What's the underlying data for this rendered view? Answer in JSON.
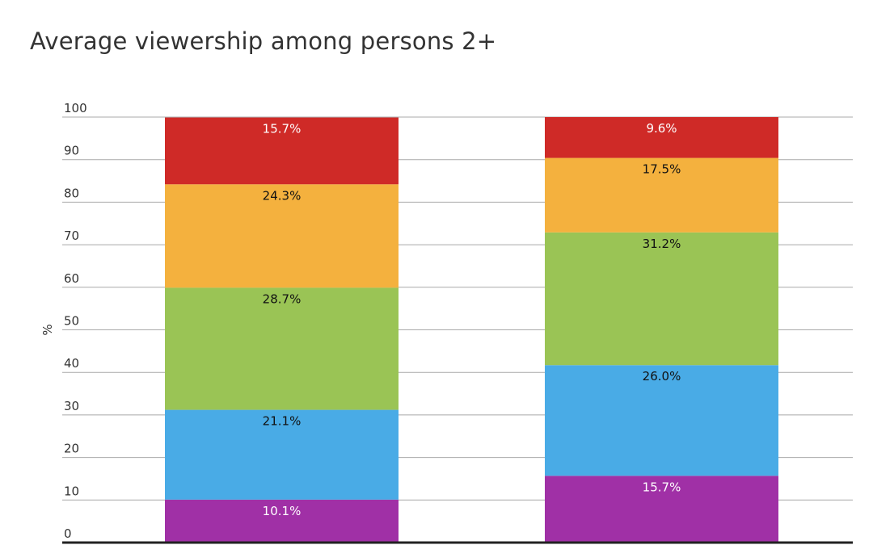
{
  "chart_data": {
    "type": "bar",
    "stacked": true,
    "title": "Average viewership among persons 2+",
    "xlabel": "",
    "ylabel": "%",
    "ylim": [
      0,
      100
    ],
    "yticks": [
      "0",
      "10",
      "20",
      "30",
      "40",
      "50",
      "60",
      "70",
      "80",
      "90",
      "100"
    ],
    "grid": true,
    "categories": [
      "",
      ""
    ],
    "series": [
      {
        "color": "#a030a6",
        "label_color": "#ffffff",
        "values": [
          10.1,
          15.7
        ],
        "labels": [
          "10.1%",
          "15.7%"
        ]
      },
      {
        "color": "#49abe6",
        "label_color": "#111111",
        "values": [
          21.1,
          26.0
        ],
        "labels": [
          "21.1%",
          "26.0%"
        ]
      },
      {
        "color": "#9ac455",
        "label_color": "#111111",
        "values": [
          28.7,
          31.2
        ],
        "labels": [
          "28.7%",
          "31.2%"
        ]
      },
      {
        "color": "#f4b13e",
        "label_color": "#111111",
        "values": [
          24.3,
          17.5
        ],
        "labels": [
          "24.3%",
          "17.5%"
        ]
      },
      {
        "color": "#cf2a27",
        "label_color": "#ffffff",
        "values": [
          15.7,
          9.6
        ],
        "labels": [
          "15.7%",
          "9.6%"
        ]
      }
    ]
  }
}
